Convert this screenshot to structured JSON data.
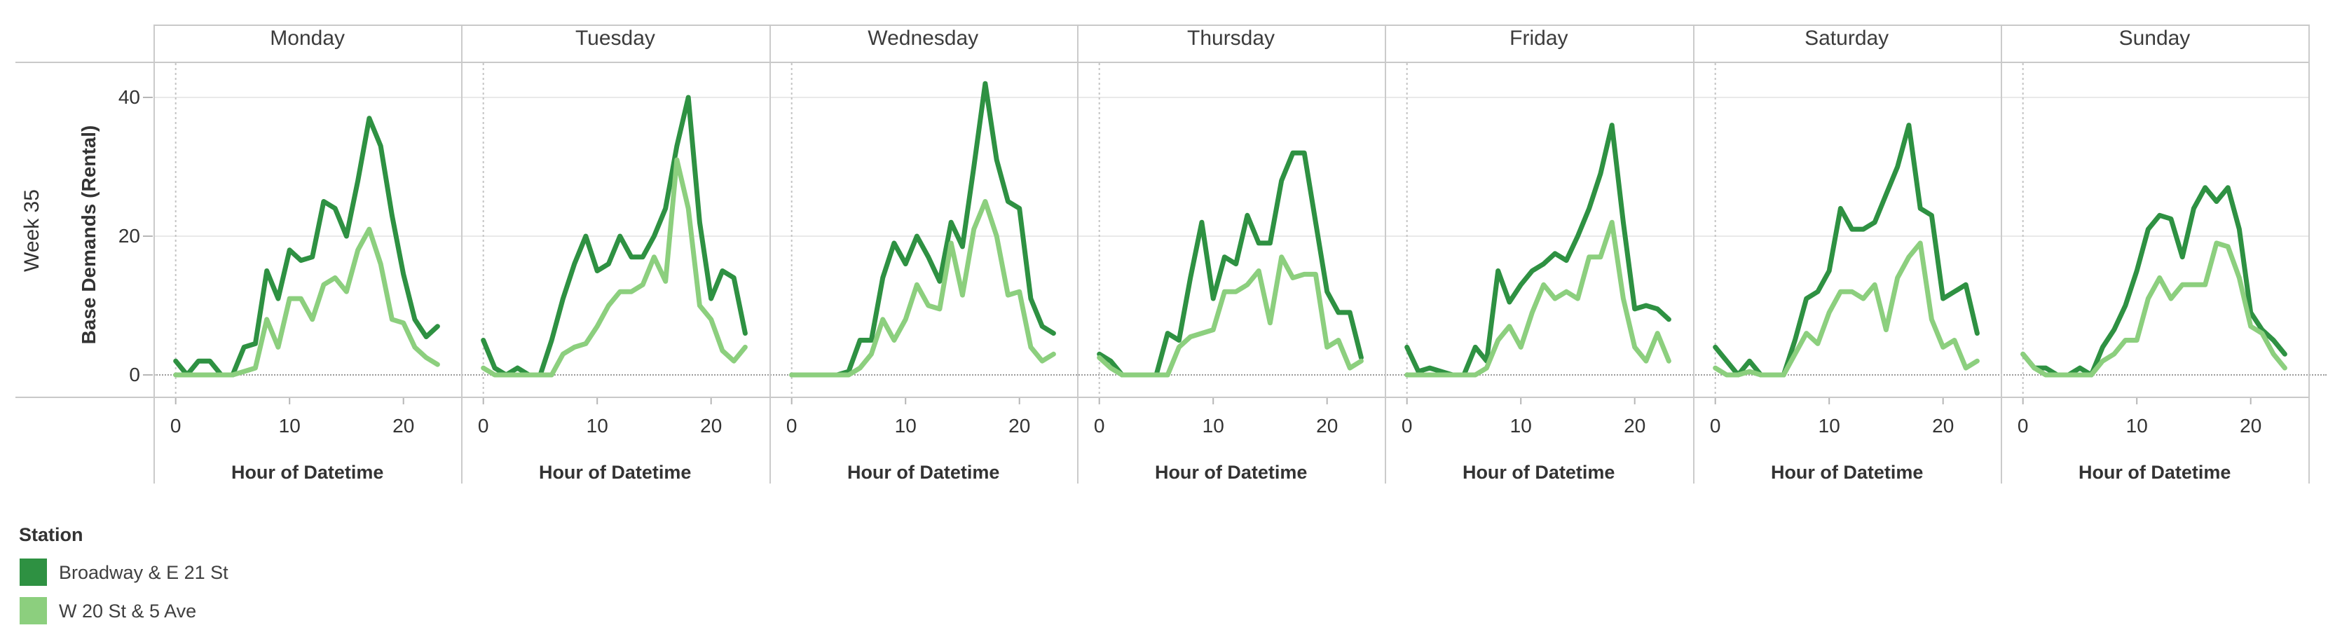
{
  "chart": {
    "week_label": "Week 35",
    "y_axis_title": "Base Demands (Rental)",
    "x_axis_title": "Hour of Datetime"
  },
  "legend": {
    "title": "Station",
    "items": [
      {
        "label": "Broadway & E 21 St",
        "color": "#2e9142"
      },
      {
        "label": "W 20 St & 5 Ave",
        "color": "#8ccf7e"
      }
    ]
  },
  "colors": {
    "series_dark_green": "#2e9142",
    "series_light_green": "#8ccf7e",
    "panel_border": "#c9c9c9",
    "gridline": "#e9e9e9",
    "zero_line": "#9b9b9b",
    "hour_zero_line": "#c4c4c4",
    "tick_mark": "#b6b6b6",
    "text": "#333333"
  },
  "chart_data": {
    "type": "line",
    "title": "",
    "facet_row_label": "Week 35",
    "ylabel": "Base Demands (Rental)",
    "xlabel": "Hour of Datetime",
    "legend_title": "Station",
    "legend_position": "bottom-left",
    "days": [
      "Monday",
      "Tuesday",
      "Wednesday",
      "Thursday",
      "Friday",
      "Saturday",
      "Sunday"
    ],
    "x_hours": [
      0,
      1,
      2,
      3,
      4,
      5,
      6,
      7,
      8,
      9,
      10,
      11,
      12,
      13,
      14,
      15,
      16,
      17,
      18,
      19,
      20,
      21,
      22,
      23
    ],
    "xticks": [
      0,
      10,
      20
    ],
    "yticks": [
      0,
      20,
      40
    ],
    "ylim": [
      -3,
      45
    ],
    "grid": "horizontal solid gridlines at 20 and 40, dotted line at 0, dotted vertical line at hour 0",
    "series_names": [
      "Broadway & E 21 St",
      "W 20 St & 5 Ave"
    ],
    "series_colors": [
      "#2e9142",
      "#8ccf7e"
    ],
    "series": [
      {
        "name": "Broadway & E 21 St",
        "color": "#2e9142",
        "by_day": {
          "Monday": [
            2,
            0,
            2,
            2,
            0,
            0,
            4,
            4.5,
            15,
            11,
            18,
            16.5,
            17,
            25,
            24,
            20,
            28,
            37,
            33,
            23,
            14.5,
            8,
            5.5,
            7
          ],
          "Tuesday": [
            5,
            1,
            0,
            1,
            0,
            0,
            5,
            11,
            16,
            20,
            15,
            16,
            20,
            17,
            17,
            20,
            24,
            33,
            40,
            22,
            11,
            15,
            14,
            6
          ],
          "Wednesday": [
            0,
            0,
            0,
            0,
            0,
            0.5,
            5,
            5,
            14,
            19,
            16,
            20,
            17,
            13.5,
            22,
            18.5,
            30,
            42,
            31,
            25,
            24,
            11,
            7,
            6
          ],
          "Thursday": [
            3,
            2,
            0,
            0,
            0,
            0,
            6,
            5,
            14,
            22,
            11,
            17,
            16,
            23,
            19,
            19,
            28,
            32,
            32,
            22,
            12,
            9,
            9,
            2.5
          ],
          "Friday": [
            4,
            0.5,
            1,
            0.5,
            0,
            0,
            4,
            2,
            15,
            10.5,
            13,
            15,
            16,
            17.5,
            16.5,
            20,
            24,
            29,
            36,
            22,
            9.5,
            10,
            9.5,
            8
          ],
          "Saturday": [
            4,
            2,
            0,
            2,
            0,
            0,
            0,
            5,
            11,
            12,
            15,
            24,
            21,
            21,
            22,
            26,
            30,
            36,
            24,
            23,
            11,
            12,
            13,
            6
          ],
          "Sunday": [
            3,
            1,
            1,
            0,
            0,
            1,
            0,
            4,
            6.5,
            10,
            15,
            21,
            23,
            22.5,
            17,
            24,
            27,
            25,
            27,
            21,
            9,
            6.5,
            5,
            3
          ]
        }
      },
      {
        "name": "W 20 St & 5 Ave",
        "color": "#8ccf7e",
        "by_day": {
          "Monday": [
            0,
            0,
            0,
            0,
            0,
            0,
            0.5,
            1,
            8,
            4,
            11,
            11,
            8,
            13,
            14,
            12,
            18,
            21,
            16,
            8,
            7.5,
            4,
            2.5,
            1.5
          ],
          "Tuesday": [
            1,
            0,
            0,
            0,
            0,
            0,
            0,
            3,
            4,
            4.5,
            7,
            10,
            12,
            12,
            13,
            17,
            13.5,
            31,
            24,
            10,
            8,
            3.5,
            2,
            4
          ],
          "Wednesday": [
            0,
            0,
            0,
            0,
            0,
            0,
            1,
            3,
            8,
            5,
            8,
            13,
            10,
            9.5,
            19,
            11.5,
            21,
            25,
            20,
            11.5,
            12,
            4,
            2,
            3
          ],
          "Thursday": [
            2.5,
            1,
            0,
            0,
            0,
            0,
            0,
            4,
            5.5,
            6,
            6.5,
            12,
            12,
            13,
            15,
            7.5,
            17,
            14,
            14.5,
            14.5,
            4,
            5,
            1,
            2
          ],
          "Friday": [
            0,
            0,
            0,
            0,
            0,
            0,
            0,
            1,
            5,
            7,
            4,
            9,
            13,
            11,
            12,
            11,
            17,
            17,
            22,
            11,
            4,
            2,
            6,
            2
          ],
          "Saturday": [
            1,
            0,
            0,
            0.5,
            0,
            0,
            0,
            3,
            6,
            4.5,
            9,
            12,
            12,
            11,
            13,
            6.5,
            14,
            17,
            19,
            8,
            4,
            5,
            1,
            2
          ],
          "Sunday": [
            3,
            1,
            0,
            0,
            0,
            0,
            0,
            2,
            3,
            5,
            5,
            11,
            14,
            11,
            13,
            13,
            13,
            19,
            18.5,
            14,
            7,
            6,
            3,
            1
          ]
        }
      }
    ]
  }
}
